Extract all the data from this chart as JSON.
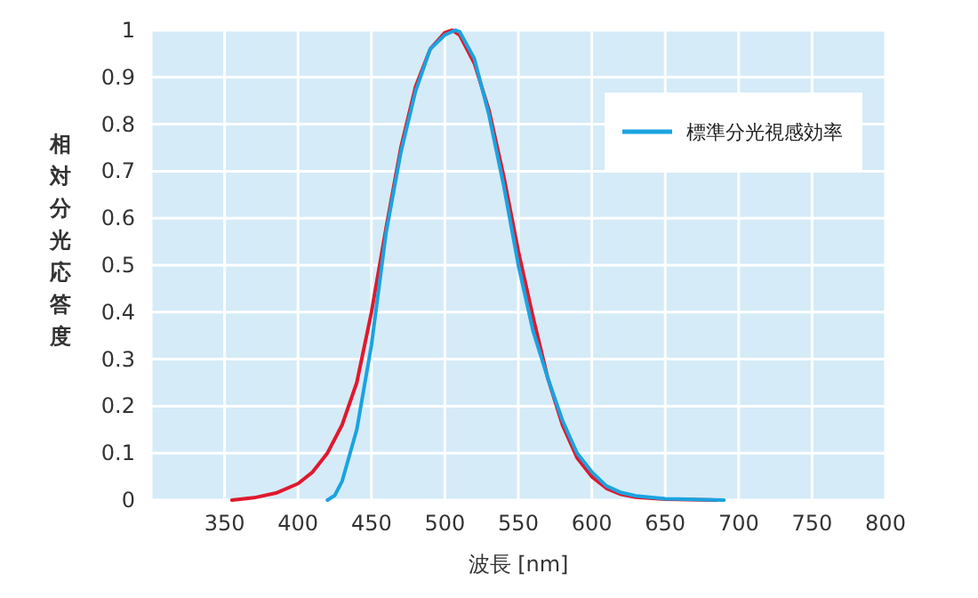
{
  "chart_data": {
    "type": "line",
    "xlabel": "波長 [nm]",
    "ylabel": "相対分光応答度",
    "xlim": [
      300,
      800
    ],
    "xticks": [
      {
        "value": 300,
        "label": null
      },
      350,
      400,
      450,
      500,
      550,
      600,
      650,
      700,
      750,
      800
    ],
    "ylim": [
      0,
      1
    ],
    "yticks": [
      0,
      0.1,
      0.2,
      0.3,
      0.4,
      0.5,
      0.6,
      0.7,
      0.8,
      0.9,
      1
    ],
    "grid": true,
    "legend": "top right",
    "marker": "none",
    "line_style": "solid",
    "series": [
      {
        "color": "#e0192d",
        "x": [
          355,
          370,
          385,
          400,
          410,
          420,
          430,
          440,
          450,
          460,
          470,
          480,
          490,
          500,
          505,
          510,
          520,
          530,
          540,
          550,
          560,
          570,
          580,
          590,
          600,
          610,
          620,
          630,
          650,
          685
        ],
        "values": [
          0,
          0.005,
          0.015,
          0.035,
          0.06,
          0.1,
          0.16,
          0.25,
          0.4,
          0.58,
          0.75,
          0.88,
          0.96,
          0.995,
          1,
          0.99,
          0.93,
          0.83,
          0.69,
          0.53,
          0.39,
          0.26,
          0.16,
          0.09,
          0.05,
          0.025,
          0.012,
          0.006,
          0.002,
          0
        ]
      },
      {
        "name": "標準分光視感効率",
        "color": "#1aa3e0",
        "x": [
          420,
          425,
          430,
          440,
          450,
          460,
          470,
          480,
          490,
          500,
          507,
          510,
          520,
          530,
          540,
          550,
          560,
          570,
          580,
          590,
          600,
          610,
          620,
          630,
          650,
          690
        ],
        "values": [
          0,
          0.01,
          0.04,
          0.15,
          0.33,
          0.57,
          0.74,
          0.87,
          0.96,
          0.99,
          1,
          0.997,
          0.94,
          0.82,
          0.67,
          0.5,
          0.36,
          0.26,
          0.17,
          0.1,
          0.06,
          0.03,
          0.016,
          0.009,
          0.003,
          0
        ]
      }
    ]
  }
}
